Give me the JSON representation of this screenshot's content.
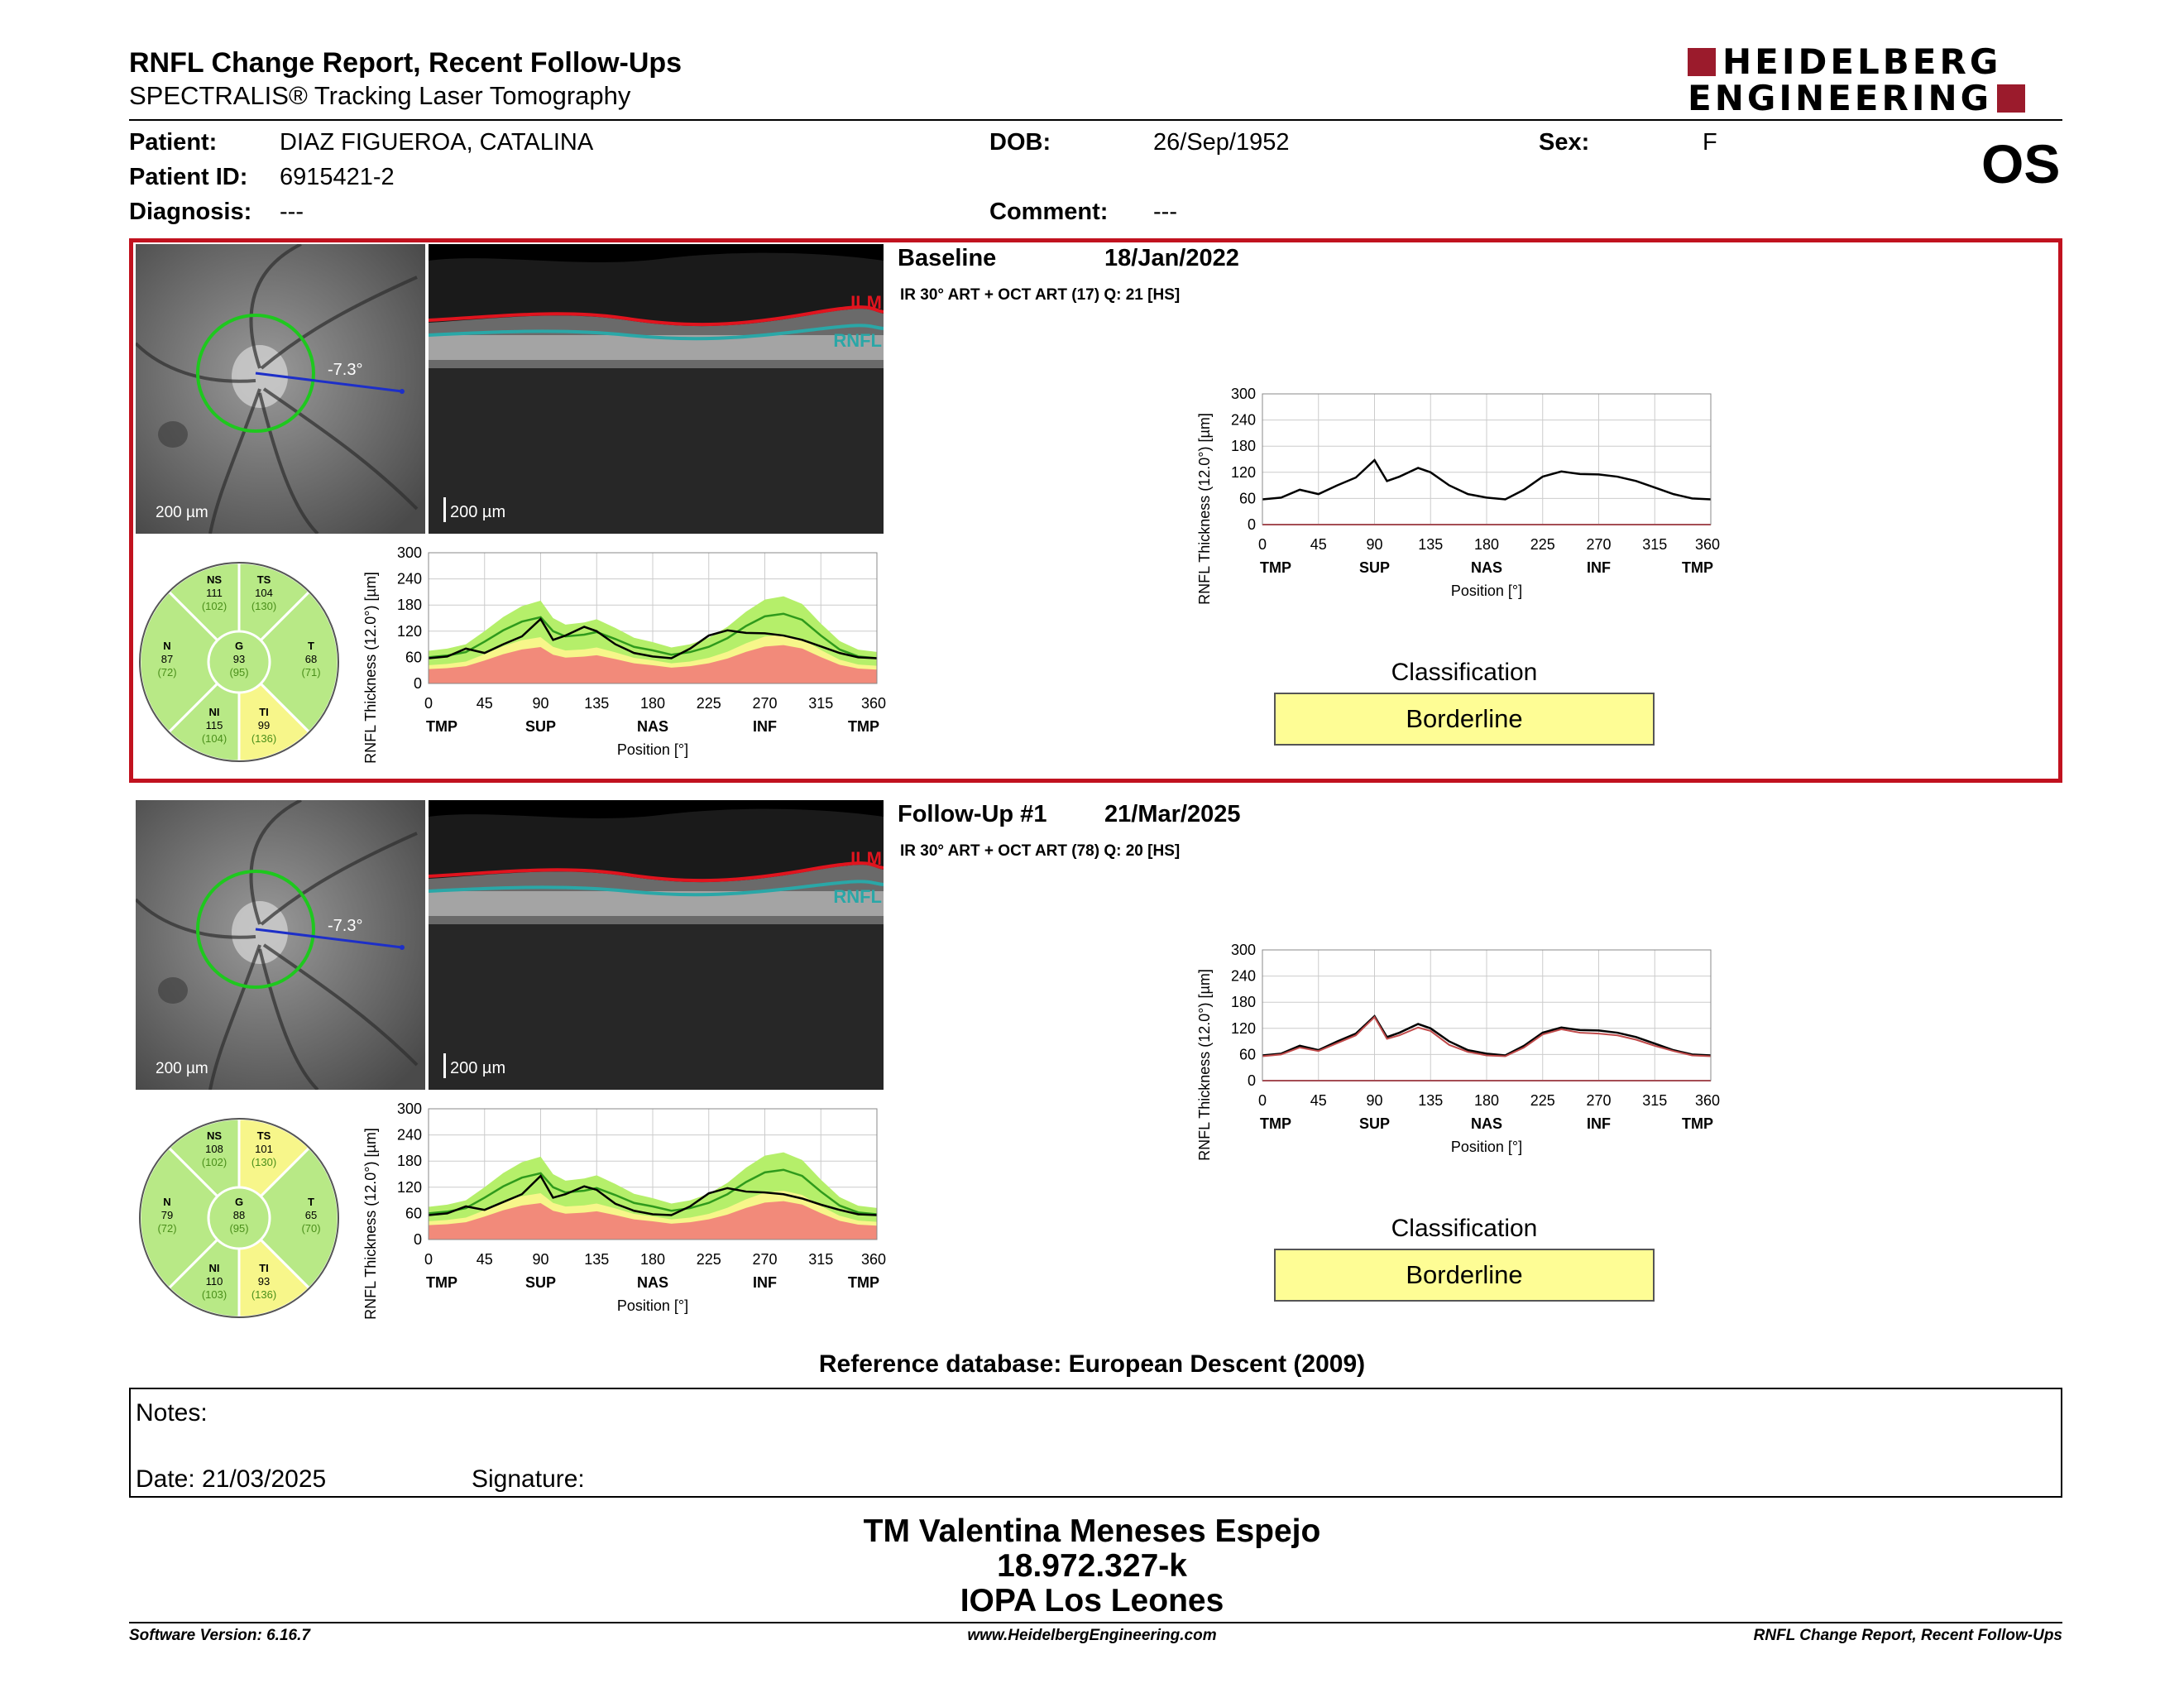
{
  "header": {
    "title": "RNFL Change Report, Recent Follow-Ups",
    "subtitle": "SPECTRALIS® Tracking Laser Tomography",
    "logo_line1": "HEIDELBERG",
    "logo_line2": "ENGINEERING",
    "eye": "OS"
  },
  "patient": {
    "patient_label": "Patient:",
    "patient_name": "DIAZ FIGUEROA, CATALINA",
    "dob_label": "DOB:",
    "dob": "26/Sep/1952",
    "sex_label": "Sex:",
    "sex": "F",
    "id_label": "Patient ID:",
    "id": "6915421-2",
    "diagnosis_label": "Diagnosis:",
    "diagnosis": "---",
    "comment_label": "Comment:",
    "comment": "---"
  },
  "colors": {
    "highlight_border": "#c1121f",
    "classification_fill": "#fefd95",
    "ilm": "#e0141e",
    "rnfl": "#2aa7a7",
    "normal_band": "#b5ef6a",
    "borderline_band": "#f7f68a",
    "outside_band": "#f28a7a",
    "sector_normal": "#b8e986",
    "sector_borderline": "#f7f68a"
  },
  "exams": [
    {
      "label": "Baseline",
      "date": "18/Jan/2022",
      "info": "IR 30° ART + OCT ART (17) Q: 21 [HS]",
      "angle": "-7.3°",
      "scale": "200 µm",
      "ilm": "ILM",
      "rnfl": "RNFL",
      "classification_title": "Classification",
      "classification": "Borderline",
      "sectors": {
        "NS": {
          "label": "NS",
          "value": "111",
          "ref": "(102)",
          "status": "normal"
        },
        "TS": {
          "label": "TS",
          "value": "104",
          "ref": "(130)",
          "status": "normal"
        },
        "N": {
          "label": "N",
          "value": "87",
          "ref": "(72)",
          "status": "normal"
        },
        "G": {
          "label": "G",
          "value": "93",
          "ref": "(95)",
          "status": "normal"
        },
        "T": {
          "label": "T",
          "value": "68",
          "ref": "(71)",
          "status": "normal"
        },
        "NI": {
          "label": "NI",
          "value": "115",
          "ref": "(104)",
          "status": "normal"
        },
        "TI": {
          "label": "TI",
          "value": "99",
          "ref": "(136)",
          "status": "borderline"
        }
      }
    },
    {
      "label": "Follow-Up #1",
      "date": "21/Mar/2025",
      "info": "IR 30° ART + OCT ART (78) Q: 20 [HS]",
      "angle": "-7.3°",
      "scale": "200 µm",
      "ilm": "ILM",
      "rnfl": "RNFL",
      "classification_title": "Classification",
      "classification": "Borderline",
      "sectors": {
        "NS": {
          "label": "NS",
          "value": "108",
          "ref": "(102)",
          "status": "normal"
        },
        "TS": {
          "label": "TS",
          "value": "101",
          "ref": "(130)",
          "status": "borderline"
        },
        "N": {
          "label": "N",
          "value": "79",
          "ref": "(72)",
          "status": "normal"
        },
        "G": {
          "label": "G",
          "value": "88",
          "ref": "(95)",
          "status": "normal"
        },
        "T": {
          "label": "T",
          "value": "65",
          "ref": "(70)",
          "status": "normal"
        },
        "NI": {
          "label": "NI",
          "value": "110",
          "ref": "(103)",
          "status": "normal"
        },
        "TI": {
          "label": "TI",
          "value": "93",
          "ref": "(136)",
          "status": "borderline"
        }
      }
    }
  ],
  "chart_data": [
    {
      "type": "area",
      "ylabel": "RNFL Thickness (12.0°) [µm]",
      "xlabel": "Position [°]",
      "ylim": [
        0,
        300
      ],
      "xlim": [
        0,
        360
      ],
      "yticks": [
        "0",
        "60",
        "120",
        "180",
        "240",
        "300"
      ],
      "xticks": [
        "0",
        "45",
        "90",
        "135",
        "180",
        "225",
        "270",
        "315",
        "360"
      ],
      "regions": [
        "TMP",
        "SUP",
        "NAS",
        "INF",
        "TMP"
      ],
      "x": [
        0,
        15,
        30,
        45,
        60,
        75,
        90,
        100,
        110,
        125,
        135,
        150,
        165,
        180,
        195,
        210,
        225,
        240,
        255,
        270,
        285,
        300,
        315,
        330,
        345,
        360
      ],
      "series": [
        {
          "values": [
            60,
            64,
            72,
            96,
            122,
            142,
            152,
            120,
            108,
            112,
            118,
            102,
            84,
            76,
            66,
            72,
            84,
            104,
            132,
            154,
            160,
            146,
            110,
            78,
            62,
            58
          ]
        },
        {
          "values": [
            58,
            62,
            80,
            70,
            90,
            108,
            148,
            100,
            110,
            130,
            120,
            90,
            70,
            62,
            58,
            80,
            110,
            122,
            116,
            115,
            110,
            100,
            85,
            70,
            60,
            58
          ]
        }
      ]
    },
    {
      "type": "line",
      "ylabel": "RNFL Thickness (12.0°) [µm]",
      "xlabel": "Position [°]",
      "ylim": [
        0,
        300
      ],
      "xticks": [
        "0",
        "45",
        "90",
        "135",
        "180",
        "225",
        "270",
        "315",
        "360"
      ],
      "regions": [
        "TMP",
        "SUP",
        "NAS",
        "INF",
        "TMP"
      ],
      "x": [
        0,
        15,
        30,
        45,
        60,
        75,
        90,
        100,
        110,
        125,
        135,
        150,
        165,
        180,
        195,
        210,
        225,
        240,
        255,
        270,
        285,
        300,
        315,
        330,
        345,
        360
      ],
      "series": [
        {
          "values": [
            58,
            62,
            80,
            70,
            90,
            108,
            148,
            100,
            110,
            130,
            120,
            90,
            70,
            62,
            58,
            80,
            110,
            122,
            116,
            115,
            110,
            100,
            85,
            70,
            60,
            58
          ]
        }
      ]
    },
    {
      "type": "area",
      "ylabel": "RNFL Thickness (12.0°) [µm]",
      "xlabel": "Position [°]",
      "ylim": [
        0,
        300
      ],
      "xticks": [
        "0",
        "45",
        "90",
        "135",
        "180",
        "225",
        "270",
        "315",
        "360"
      ],
      "regions": [
        "TMP",
        "SUP",
        "NAS",
        "INF",
        "TMP"
      ],
      "x": [
        0,
        15,
        30,
        45,
        60,
        75,
        90,
        100,
        110,
        125,
        135,
        150,
        165,
        180,
        195,
        210,
        225,
        240,
        255,
        270,
        285,
        300,
        315,
        330,
        345,
        360
      ],
      "series": [
        {
          "values": [
            60,
            64,
            72,
            96,
            122,
            142,
            152,
            120,
            108,
            112,
            118,
            102,
            84,
            76,
            66,
            72,
            84,
            104,
            132,
            154,
            160,
            146,
            110,
            78,
            62,
            58
          ]
        },
        {
          "values": [
            56,
            60,
            76,
            68,
            86,
            104,
            146,
            96,
            104,
            122,
            114,
            82,
            66,
            58,
            56,
            76,
            106,
            118,
            110,
            108,
            104,
            94,
            80,
            68,
            58,
            56
          ]
        }
      ]
    },
    {
      "type": "line",
      "ylabel": "RNFL Thickness (12.0°) [µm]",
      "xlabel": "Position [°]",
      "ylim": [
        0,
        300
      ],
      "xticks": [
        "0",
        "45",
        "90",
        "135",
        "180",
        "225",
        "270",
        "315",
        "360"
      ],
      "regions": [
        "TMP",
        "SUP",
        "NAS",
        "INF",
        "TMP"
      ],
      "x": [
        0,
        15,
        30,
        45,
        60,
        75,
        90,
        100,
        110,
        125,
        135,
        150,
        165,
        180,
        195,
        210,
        225,
        240,
        255,
        270,
        285,
        300,
        315,
        330,
        345,
        360
      ],
      "series": [
        {
          "values": [
            58,
            62,
            80,
            70,
            90,
            108,
            148,
            100,
            110,
            130,
            120,
            90,
            70,
            62,
            58,
            80,
            110,
            122,
            116,
            115,
            110,
            100,
            85,
            70,
            60,
            58
          ]
        },
        {
          "values": [
            56,
            60,
            76,
            68,
            86,
            104,
            146,
            96,
            104,
            122,
            114,
            82,
            66,
            58,
            56,
            76,
            106,
            118,
            110,
            108,
            104,
            94,
            80,
            68,
            58,
            56
          ]
        }
      ]
    }
  ],
  "reference": "Reference database: European Descent (2009)",
  "notes": {
    "label": "Notes:",
    "date": "Date: 21/03/2025",
    "signature_label": "Signature:"
  },
  "signature": {
    "line1": "TM Valentina Meneses Espejo",
    "line2": "18.972.327-k",
    "line3": "IOPA Los Leones"
  },
  "footer": {
    "left": "Software Version: 6.16.7",
    "center": "www.HeidelbergEngineering.com",
    "right": "RNFL Change Report, Recent Follow-Ups"
  }
}
